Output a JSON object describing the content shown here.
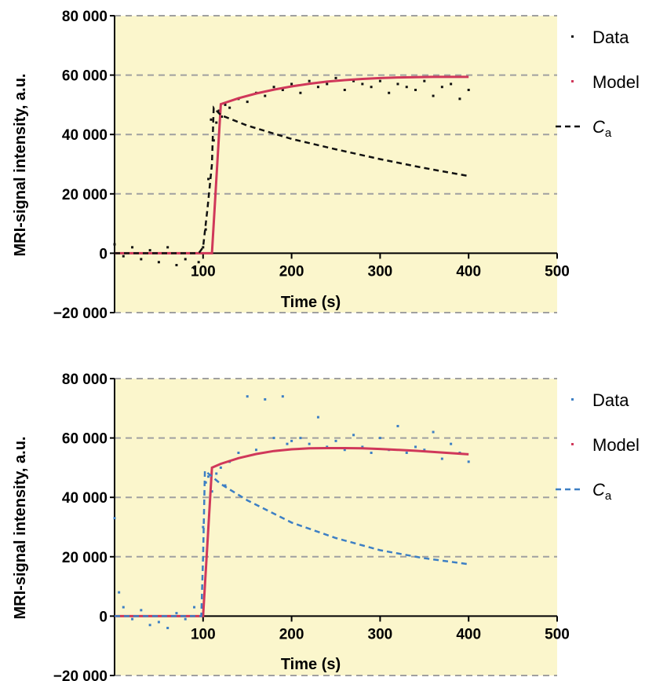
{
  "chart_data": [
    {
      "type": "scatter",
      "xlabel": "Time (s)",
      "ylabel": "MRI-signal intensity, a.u.",
      "xlim": [
        0,
        500
      ],
      "ylim": [
        -20000,
        80000
      ],
      "xticks": [
        {
          "value": 100,
          "label": "100"
        },
        {
          "value": 200,
          "label": "200"
        },
        {
          "value": 300,
          "label": "300"
        },
        {
          "value": 400,
          "label": "400"
        },
        {
          "value": 500,
          "label": "500"
        }
      ],
      "yticks": [
        {
          "value": -20000,
          "label": "−20 000"
        },
        {
          "value": 0,
          "label": "0"
        },
        {
          "value": 20000,
          "label": "20 000"
        },
        {
          "value": 40000,
          "label": "40 000"
        },
        {
          "value": 60000,
          "label": "60 000"
        },
        {
          "value": 80000,
          "label": "80 000"
        }
      ],
      "grid": true,
      "legend_position": "right",
      "colors": {
        "data": "#111111",
        "model": "#d0385a",
        "ca": "#111111",
        "background": "#fbf6cc"
      },
      "series": [
        {
          "name": "Data",
          "kind": "points",
          "x": [
            0,
            10,
            20,
            30,
            40,
            50,
            60,
            70,
            80,
            90,
            95,
            100,
            103,
            106,
            109,
            112,
            115,
            118,
            121,
            125,
            130,
            140,
            150,
            160,
            170,
            180,
            190,
            200,
            210,
            220,
            230,
            240,
            250,
            260,
            270,
            280,
            290,
            300,
            310,
            320,
            330,
            340,
            350,
            360,
            370,
            380,
            390,
            400
          ],
          "y": [
            3000,
            -1000,
            2000,
            -2000,
            1000,
            -3000,
            2000,
            -4000,
            -2000,
            -5000,
            -3000,
            2000,
            8000,
            25000,
            45000,
            38000,
            44000,
            48000,
            46000,
            50000,
            49000,
            52000,
            51000,
            54000,
            53000,
            56000,
            55000,
            57000,
            54000,
            58000,
            56000,
            57000,
            59000,
            55000,
            58000,
            57000,
            56000,
            58000,
            54000,
            57000,
            56000,
            55000,
            58000,
            53000,
            56000,
            57000,
            52000,
            55000
          ]
        },
        {
          "name": "Model",
          "kind": "line",
          "x": [
            0,
            110,
            120,
            140,
            160,
            180,
            200,
            220,
            240,
            260,
            280,
            300,
            320,
            340,
            360,
            380,
            400
          ],
          "y": [
            0,
            0,
            50200,
            52200,
            53800,
            55100,
            56200,
            57100,
            57800,
            58300,
            58700,
            59000,
            59200,
            59300,
            59400,
            59400,
            59400
          ]
        },
        {
          "name": "C",
          "subscript": "a",
          "kind": "dashed",
          "x": [
            0,
            95,
            100,
            105,
            110,
            112,
            120,
            150,
            200,
            250,
            300,
            350,
            400
          ],
          "y": [
            0,
            0,
            2000,
            15000,
            30000,
            49000,
            46500,
            43000,
            38500,
            35000,
            31700,
            28700,
            26000
          ]
        }
      ]
    },
    {
      "type": "scatter",
      "xlabel": "Time (s)",
      "ylabel": "MRI-signal intensity, a.u.",
      "xlim": [
        0,
        500
      ],
      "ylim": [
        -20000,
        80000
      ],
      "xticks": [
        {
          "value": 100,
          "label": "100"
        },
        {
          "value": 200,
          "label": "200"
        },
        {
          "value": 300,
          "label": "300"
        },
        {
          "value": 400,
          "label": "400"
        },
        {
          "value": 500,
          "label": "500"
        }
      ],
      "yticks": [
        {
          "value": -20000,
          "label": "−20 000"
        },
        {
          "value": 0,
          "label": "0"
        },
        {
          "value": 20000,
          "label": "20 000"
        },
        {
          "value": 40000,
          "label": "40 000"
        },
        {
          "value": 60000,
          "label": "60 000"
        },
        {
          "value": 80000,
          "label": "80 000"
        }
      ],
      "grid": true,
      "legend_position": "right",
      "colors": {
        "data": "#3d7fc4",
        "model": "#d0385a",
        "ca": "#3d7fc4",
        "background": "#fbf6cc"
      },
      "series": [
        {
          "name": "Data",
          "kind": "points",
          "x": [
            0,
            5,
            10,
            20,
            30,
            40,
            50,
            60,
            70,
            80,
            90,
            100,
            103,
            106,
            110,
            115,
            120,
            125,
            130,
            140,
            150,
            160,
            170,
            180,
            190,
            195,
            200,
            210,
            220,
            230,
            240,
            250,
            260,
            270,
            280,
            290,
            300,
            310,
            320,
            330,
            340,
            350,
            360,
            370,
            380,
            390,
            400
          ],
          "y": [
            33000,
            8000,
            3000,
            -1000,
            2000,
            -3000,
            -2000,
            -4000,
            1000,
            -1000,
            3000,
            30000,
            45000,
            47000,
            42000,
            48000,
            50000,
            44000,
            52000,
            55000,
            74000,
            56000,
            73000,
            60000,
            74000,
            58000,
            59000,
            60000,
            58000,
            67000,
            57000,
            59000,
            56000,
            61000,
            57000,
            55000,
            60000,
            56000,
            64000,
            55000,
            57000,
            56000,
            62000,
            53000,
            58000,
            55000,
            52000
          ]
        },
        {
          "name": "Model",
          "kind": "line",
          "x": [
            0,
            100,
            110,
            120,
            140,
            160,
            180,
            200,
            220,
            240,
            260,
            280,
            300,
            320,
            340,
            360,
            380,
            400
          ],
          "y": [
            0,
            0,
            50000,
            51300,
            53200,
            54600,
            55600,
            56200,
            56500,
            56600,
            56600,
            56500,
            56300,
            56000,
            55700,
            55300,
            54900,
            54500
          ]
        },
        {
          "name": "C",
          "subscript": "a",
          "kind": "dashed",
          "x": [
            0,
            98,
            100,
            102,
            110,
            120,
            150,
            200,
            250,
            300,
            350,
            400
          ],
          "y": [
            0,
            0,
            20000,
            49000,
            47000,
            44500,
            39000,
            31500,
            26300,
            22200,
            19500,
            17500
          ]
        }
      ]
    }
  ]
}
